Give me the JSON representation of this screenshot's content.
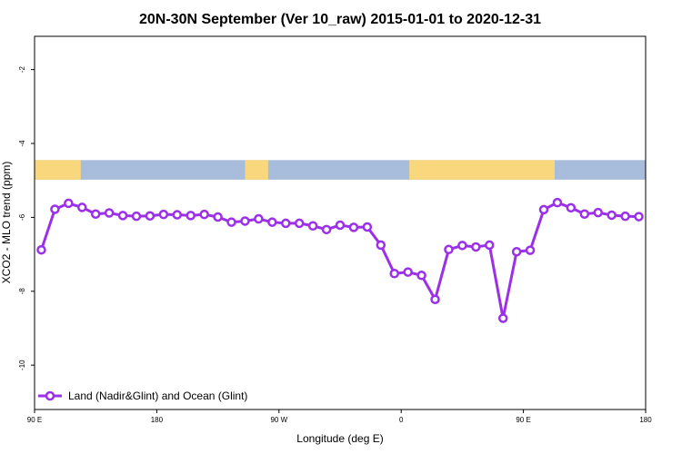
{
  "chart_data": {
    "type": "line",
    "title": "20N-30N September (Ver 10_raw)   2015-01-01 to 2020-12-31",
    "xlabel": "Longitude (deg E)",
    "ylabel": "XCO2 - MLO trend (ppm)",
    "xlim": [
      90,
      540
    ],
    "ylim": [
      -11.2,
      -1.1
    ],
    "x_ticks": [
      {
        "value": 90,
        "label": "90 E"
      },
      {
        "value": 180,
        "label": "180"
      },
      {
        "value": 270,
        "label": "90 W"
      },
      {
        "value": 360,
        "label": "0"
      },
      {
        "value": 450,
        "label": "90 E"
      },
      {
        "value": 540,
        "label": "180"
      }
    ],
    "y_ticks": [
      {
        "value": -2,
        "label": "-2"
      },
      {
        "value": -4,
        "label": "-4"
      },
      {
        "value": -6,
        "label": "-6"
      },
      {
        "value": -8,
        "label": "-8"
      },
      {
        "value": -10,
        "label": "-10"
      }
    ],
    "map_strip": {
      "y_top": -4.45,
      "y_bottom": -4.98,
      "ocean_color": "#a8bcdc",
      "land_color": "#f9d77c",
      "land_segments": [
        [
          90,
          124
        ],
        [
          245,
          262
        ],
        [
          366,
          473
        ]
      ]
    },
    "series": [
      {
        "name": "Land (Nadir&Glint) and Ocean (Glint)",
        "color": "#9b30e8",
        "x": [
          95,
          105,
          115,
          125,
          135,
          145,
          155,
          165,
          175,
          185,
          195,
          205,
          215,
          225,
          235,
          245,
          255,
          265,
          275,
          285,
          295,
          305,
          315,
          325,
          335,
          345,
          355,
          365,
          375,
          385,
          395,
          405,
          415,
          425,
          435,
          445,
          455,
          465,
          475,
          485,
          495,
          505,
          515,
          525,
          535
        ],
        "values": [
          -6.88,
          -5.78,
          -5.62,
          -5.73,
          -5.91,
          -5.88,
          -5.95,
          -5.97,
          -5.96,
          -5.92,
          -5.93,
          -5.95,
          -5.92,
          -5.99,
          -6.13,
          -6.1,
          -6.04,
          -6.13,
          -6.16,
          -6.16,
          -6.23,
          -6.33,
          -6.21,
          -6.27,
          -6.26,
          -6.75,
          -7.52,
          -7.48,
          -7.57,
          -8.22,
          -6.87,
          -6.76,
          -6.8,
          -6.75,
          -8.73,
          -6.93,
          -6.89,
          -5.79,
          -5.6,
          -5.74,
          -5.91,
          -5.87,
          -5.94,
          -5.97,
          -5.98
        ]
      }
    ],
    "legend": {
      "placement": "bottom-left"
    },
    "grid": false
  }
}
